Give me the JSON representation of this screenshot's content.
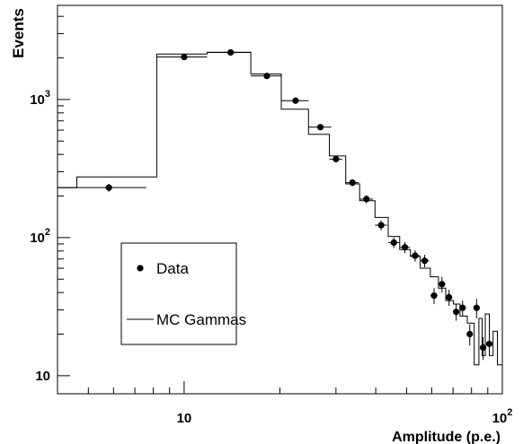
{
  "chart_data": {
    "type": "scatter",
    "xlabel": "Amplitude (p.e.)",
    "ylabel": "Events",
    "xscale": "log",
    "yscale": "log",
    "xlim": [
      4,
      100
    ],
    "ylim": [
      7.4,
      4800
    ],
    "grid": false,
    "legend_placement": "lower-left",
    "x_tick_labels": [
      {
        "value": 10,
        "base": "10",
        "exp": ""
      },
      {
        "value": 100,
        "base": "10",
        "exp": "2"
      }
    ],
    "y_tick_labels": [
      {
        "value": 10,
        "base": "10",
        "exp": ""
      },
      {
        "value": 100,
        "base": "10",
        "exp": "2"
      },
      {
        "value": 1000,
        "base": "10",
        "exp": "3"
      }
    ],
    "series": [
      {
        "name": "Data",
        "kind": "points",
        "points": [
          {
            "x": 5.8,
            "y": 230,
            "xerr": [
              4.0,
              7.6
            ],
            "yerr": [
              215,
              245
            ]
          },
          {
            "x": 10.0,
            "y": 2030,
            "xerr": [
              8.2,
              11.8
            ],
            "yerr": [
              1985,
              2075
            ]
          },
          {
            "x": 14.0,
            "y": 2190,
            "xerr": [
              11.8,
              16.2
            ],
            "yerr": [
              2145,
              2240
            ]
          },
          {
            "x": 18.2,
            "y": 1480,
            "xerr": [
              16.2,
              20.2
            ],
            "yerr": [
              1440,
              1520
            ]
          },
          {
            "x": 22.4,
            "y": 980,
            "xerr": [
              20.2,
              24.6
            ],
            "yerr": [
              950,
              1010
            ]
          },
          {
            "x": 26.8,
            "y": 630,
            "xerr": [
              24.6,
              29.0
            ],
            "yerr": [
              605,
              655
            ]
          },
          {
            "x": 30.0,
            "y": 370,
            "xerr": [
              28.6,
              31.4
            ],
            "yerr": [
              352,
              388
            ]
          },
          {
            "x": 33.8,
            "y": 250,
            "xerr": [
              32.2,
              35.4
            ],
            "yerr": [
              235,
              265
            ]
          },
          {
            "x": 37.4,
            "y": 190,
            "xerr": [
              35.6,
              39.2
            ],
            "yerr": [
              177,
              203
            ]
          },
          {
            "x": 41.6,
            "y": 123,
            "xerr": [
              39.8,
              43.4
            ],
            "yerr": [
              113,
              133
            ]
          },
          {
            "x": 45.6,
            "y": 92,
            "xerr": [
              43.8,
              47.4
            ],
            "yerr": [
              84,
              100
            ]
          },
          {
            "x": 49.4,
            "y": 85,
            "xerr": [
              47.6,
              51.2
            ],
            "yerr": [
              77,
              93
            ]
          },
          {
            "x": 53.2,
            "y": 74,
            "xerr": [
              51.4,
              55.0
            ],
            "yerr": [
              67,
              81
            ]
          },
          {
            "x": 57.0,
            "y": 68,
            "xerr": [
              55.2,
              58.8
            ],
            "yerr": [
              61,
              75
            ]
          },
          {
            "x": 61.0,
            "y": 38,
            "xerr": [
              59.4,
              62.6
            ],
            "yerr": [
              33,
              43
            ]
          },
          {
            "x": 64.6,
            "y": 46,
            "xerr": [
              63.0,
              66.2
            ],
            "yerr": [
              40,
              52
            ]
          },
          {
            "x": 68.0,
            "y": 37,
            "xerr": [
              66.4,
              69.6
            ],
            "yerr": [
              32,
              42
            ]
          },
          {
            "x": 71.6,
            "y": 29,
            "xerr": [
              70.2,
              73.0
            ],
            "yerr": [
              25,
              33
            ]
          },
          {
            "x": 75.0,
            "y": 31,
            "xerr": [
              73.6,
              76.4
            ],
            "yerr": [
              27,
              35
            ]
          },
          {
            "x": 79.0,
            "y": 20,
            "xerr": [
              77.6,
              80.4
            ],
            "yerr": [
              16.5,
              23.5
            ]
          },
          {
            "x": 83.0,
            "y": 31,
            "xerr": [
              81.6,
              84.4
            ],
            "yerr": [
              26,
              36
            ]
          },
          {
            "x": 87.0,
            "y": 16,
            "xerr": [
              85.6,
              88.4
            ],
            "yerr": [
              13,
              19
            ]
          },
          {
            "x": 91.0,
            "y": 17,
            "xerr": [
              89.6,
              92.4
            ],
            "yerr": [
              14,
              20
            ]
          }
        ]
      },
      {
        "name": "MC Gammas",
        "kind": "step",
        "bins": [
          {
            "x0": 4.0,
            "x1": 4.6,
            "y": 230
          },
          {
            "x0": 4.6,
            "x1": 8.2,
            "y": 275
          },
          {
            "x0": 8.2,
            "x1": 11.8,
            "y": 2130
          },
          {
            "x0": 11.8,
            "x1": 16.2,
            "y": 2200
          },
          {
            "x0": 16.2,
            "x1": 20.2,
            "y": 1530
          },
          {
            "x0": 20.2,
            "x1": 24.6,
            "y": 850
          },
          {
            "x0": 24.6,
            "x1": 28.6,
            "y": 560
          },
          {
            "x0": 28.6,
            "x1": 32.2,
            "y": 390
          },
          {
            "x0": 32.2,
            "x1": 35.6,
            "y": 245
          },
          {
            "x0": 35.6,
            "x1": 39.8,
            "y": 185
          },
          {
            "x0": 39.8,
            "x1": 43.8,
            "y": 140
          },
          {
            "x0": 43.8,
            "x1": 47.6,
            "y": 102
          },
          {
            "x0": 47.6,
            "x1": 51.4,
            "y": 82
          },
          {
            "x0": 51.4,
            "x1": 55.2,
            "y": 73
          },
          {
            "x0": 55.2,
            "x1": 59.4,
            "y": 60
          },
          {
            "x0": 59.4,
            "x1": 63.0,
            "y": 52
          },
          {
            "x0": 63.0,
            "x1": 66.4,
            "y": 43
          },
          {
            "x0": 66.4,
            "x1": 70.2,
            "y": 35
          },
          {
            "x0": 70.2,
            "x1": 73.6,
            "y": 33
          },
          {
            "x0": 73.6,
            "x1": 77.6,
            "y": 27
          },
          {
            "x0": 77.6,
            "x1": 81.6,
            "y": 24
          },
          {
            "x0": 81.6,
            "x1": 84.4,
            "y": 12
          },
          {
            "x0": 84.4,
            "x1": 86.4,
            "y": 26
          },
          {
            "x0": 86.4,
            "x1": 88.4,
            "y": 14
          },
          {
            "x0": 88.4,
            "x1": 91.0,
            "y": 28
          },
          {
            "x0": 91.0,
            "x1": 93.5,
            "y": 14
          },
          {
            "x0": 93.5,
            "x1": 96.5,
            "y": 21
          },
          {
            "x0": 96.5,
            "x1": 100,
            "y": 12
          }
        ]
      }
    ]
  }
}
